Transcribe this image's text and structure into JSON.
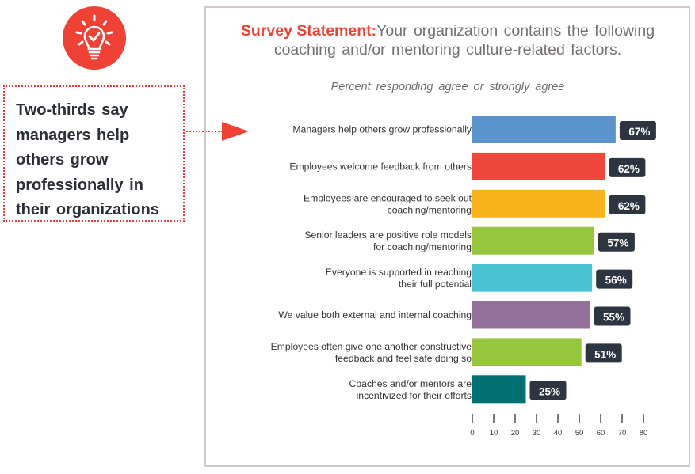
{
  "icon": {
    "name": "lightbulb-check-icon",
    "color": "#ef4136"
  },
  "callout": {
    "lines": [
      "Two-thirds say",
      "managers help",
      "others grow",
      "professionally in",
      "their organizations"
    ],
    "border_color": "#e0413a"
  },
  "header": {
    "lead": "Survey Statement:",
    "text": "Your organization contains the following coaching and/or mentoring culture-related factors.",
    "subtitle": "Percent responding agree or strongly agree"
  },
  "chart_data": {
    "type": "bar",
    "orientation": "horizontal",
    "title": "Survey Statement: Your organization contains the following coaching and/or mentoring culture-related factors.",
    "subtitle": "Percent responding agree or strongly agree",
    "xlabel": "",
    "ylabel": "",
    "xlim": [
      0,
      80
    ],
    "xticks": [
      0,
      10,
      20,
      30,
      40,
      50,
      60,
      70,
      80
    ],
    "grid": false,
    "legend": "none",
    "highlighted_category": "Managers help others grow professionally",
    "categories": [
      [
        "Managers help others grow professionally"
      ],
      [
        "Employees welcome feedback from others"
      ],
      [
        "Employees are encouraged to seek out",
        "coaching/mentoring"
      ],
      [
        "Senior leaders are positive role models",
        "for coaching/mentoring"
      ],
      [
        "Everyone is supported in reaching",
        "their full potential"
      ],
      [
        "We value both external and internal coaching"
      ],
      [
        "Employees often give one another constructive",
        "feedback and feel safe doing so"
      ],
      [
        "Coaches and/or mentors are",
        "incentivized for their efforts"
      ]
    ],
    "values": [
      67,
      62,
      62,
      57,
      56,
      55,
      51,
      25
    ],
    "value_labels": [
      "67%",
      "62%",
      "62%",
      "57%",
      "56%",
      "55%",
      "51%",
      "25%"
    ],
    "colors": [
      "#5b93cd",
      "#ef473b",
      "#f9b41b",
      "#95c63d",
      "#4ac2d3",
      "#93719a",
      "#95c63d",
      "#007170"
    ],
    "label_box_color": "#2d3540"
  }
}
